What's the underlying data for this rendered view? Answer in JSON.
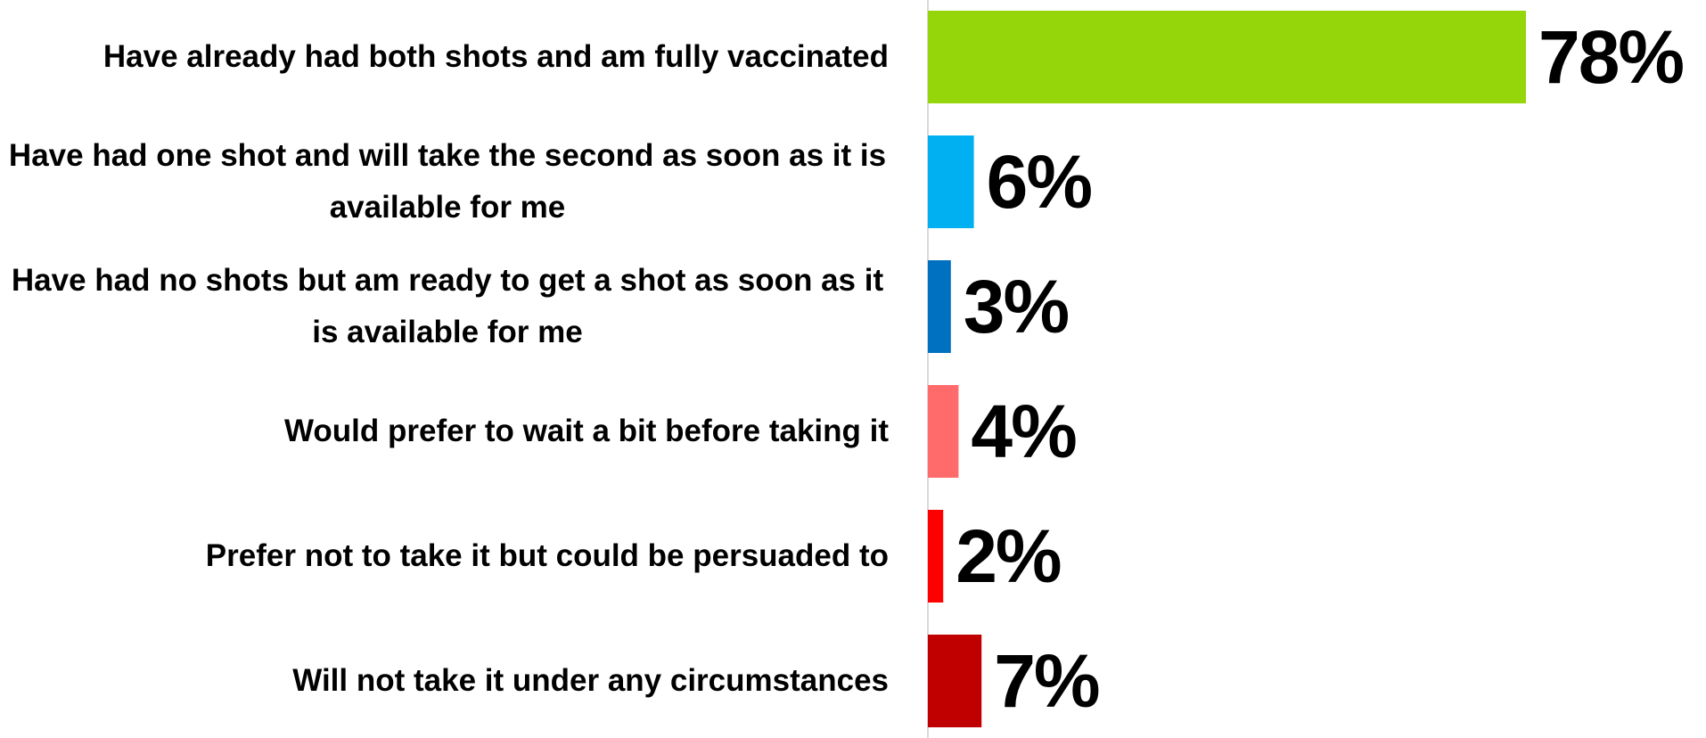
{
  "chart_data": {
    "type": "bar",
    "orientation": "horizontal",
    "categories": [
      "Have already had both shots and am fully vaccinated",
      "Have had one shot and will take the second as soon as it is available for me",
      "Have had no shots but am ready to get a shot as soon as it is available for me",
      "Would prefer to wait a bit before taking it",
      "Prefer not to take it but could be persuaded to",
      "Will not take it under any circumstances"
    ],
    "values": [
      78,
      6,
      3,
      4,
      2,
      7
    ],
    "value_labels": [
      "78%",
      "6%",
      "3%",
      "4%",
      "2%",
      "7%"
    ],
    "colors": [
      "#94d60a",
      "#00b0f0",
      "#0070c0",
      "#ff6b6b",
      "#ff0000",
      "#c00000"
    ]
  }
}
